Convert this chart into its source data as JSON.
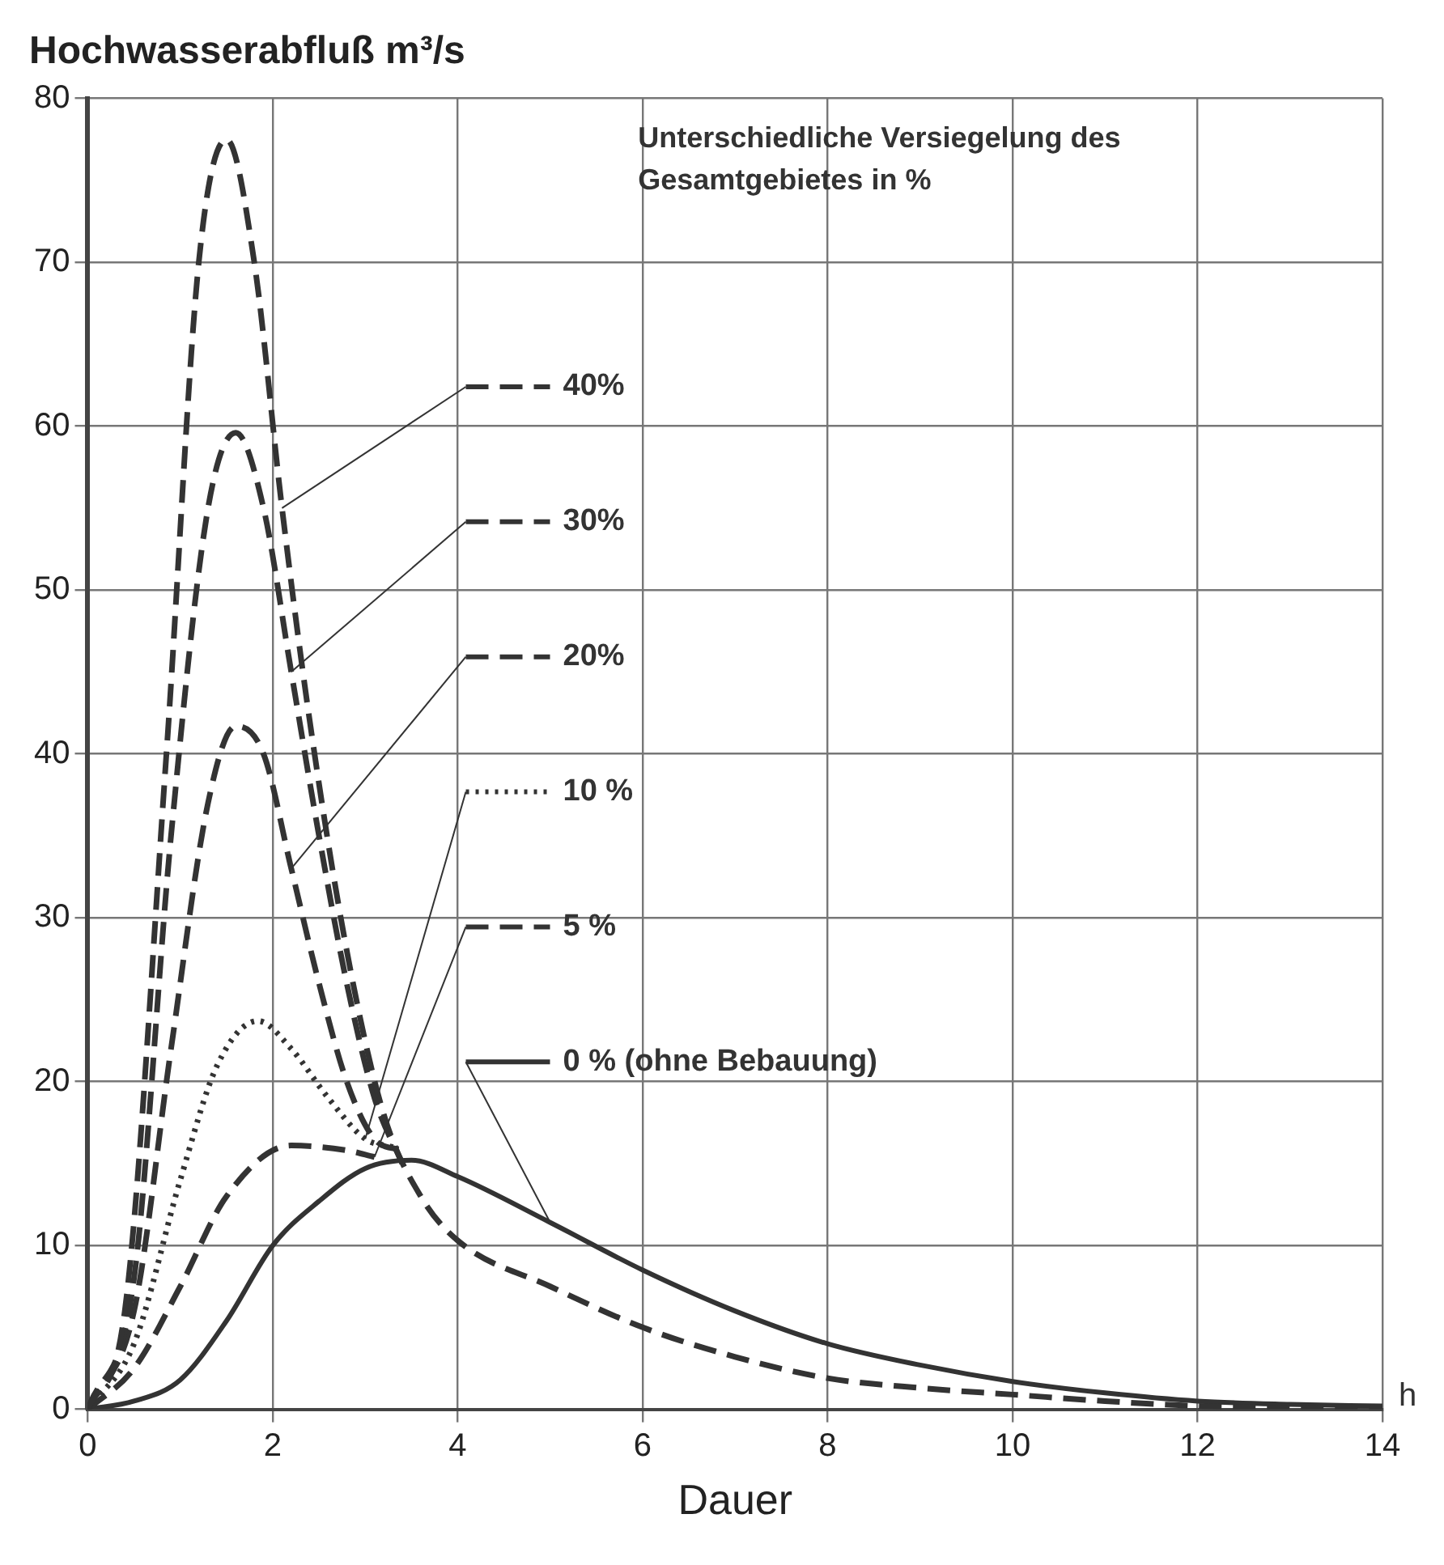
{
  "chart_data": {
    "type": "line",
    "ylabel": "Hochwasserabfluß m³/s",
    "xlabel": "Dauer",
    "legend_title": "Unterschiedliche Versiegelung des Gesamtgebietes in %",
    "annotations": [
      "h"
    ],
    "xlim": [
      0,
      14
    ],
    "xticks": [
      0,
      2,
      4,
      6,
      8,
      10,
      12,
      14
    ],
    "ylim": [
      0,
      80
    ],
    "yticks": [
      0,
      10,
      20,
      30,
      40,
      50,
      60,
      70,
      80
    ],
    "grid": true,
    "legend": "top",
    "marker": "none",
    "series": [
      {
        "name": "40%",
        "color": "#333333",
        "line_style": "dashed",
        "x": [
          0,
          0.4,
          0.85,
          1.2,
          1.5,
          1.8,
          2.1,
          2.4,
          2.8,
          3.2,
          3.6,
          4,
          5,
          6,
          7,
          8,
          9,
          10,
          11,
          12,
          14
        ],
        "values": [
          0,
          6,
          40,
          70,
          77.5,
          70,
          55,
          42,
          28,
          18,
          13,
          10.3,
          7.5,
          5,
          3.2,
          1.9,
          1.3,
          0.9,
          0.5,
          0.2,
          0
        ]
      },
      {
        "name": "30%",
        "color": "#333333",
        "line_style": "dashed",
        "x": [
          0,
          0.5,
          0.9,
          1.3,
          1.6,
          1.9,
          2.2,
          2.5,
          2.8,
          3.1,
          3.4
        ],
        "values": [
          0,
          8,
          35,
          55,
          59.6,
          55,
          45,
          35,
          26,
          19,
          15
        ]
      },
      {
        "name": "20%",
        "color": "#333333",
        "line_style": "dashed",
        "x": [
          0,
          0.5,
          0.9,
          1.3,
          1.6,
          1.9,
          2.2,
          2.5,
          2.8,
          3.1,
          3.4
        ],
        "values": [
          0,
          6,
          22,
          37,
          41.7,
          40,
          33,
          26,
          20,
          16.5,
          15.8
        ]
      },
      {
        "name": "10 %",
        "color": "#333333",
        "line_style": "dotted",
        "x": [
          0,
          0.5,
          1,
          1.4,
          1.84,
          2.2,
          2.6,
          3,
          3.3
        ],
        "values": [
          0,
          4,
          14,
          21,
          23.7,
          22,
          19,
          16.5,
          16
        ]
      },
      {
        "name": "5 %",
        "color": "#333333",
        "line_style": "dashed",
        "x": [
          0,
          0.5,
          1,
          1.5,
          2.2,
          2.8,
          3.1
        ],
        "values": [
          0,
          2.5,
          7.5,
          13,
          16.1,
          15.8,
          15.4
        ]
      },
      {
        "name": "0 % (ohne Bebauung)",
        "color": "#333333",
        "line_style": "solid",
        "x": [
          0,
          0.5,
          1,
          1.5,
          2,
          2.5,
          3,
          3.5,
          4,
          5,
          6,
          7,
          8,
          9,
          10,
          11,
          12,
          13,
          14
        ],
        "values": [
          0,
          0.5,
          1.8,
          5.4,
          10,
          12.7,
          14.7,
          15.2,
          14.2,
          11.4,
          8.5,
          6,
          4,
          2.7,
          1.7,
          1,
          0.5,
          0.3,
          0.2
        ]
      }
    ]
  }
}
